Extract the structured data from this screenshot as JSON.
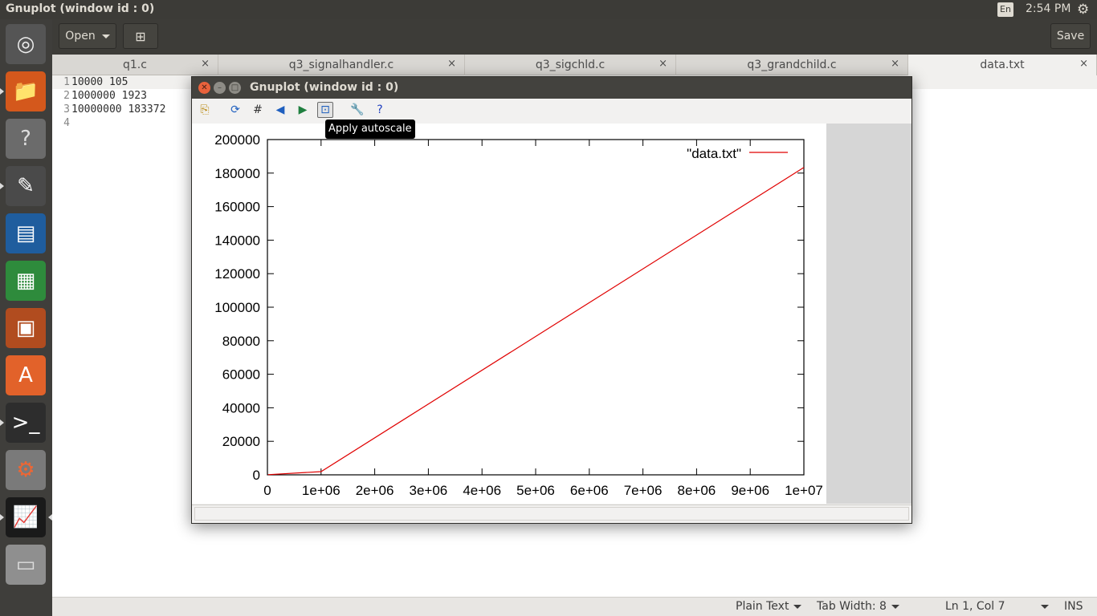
{
  "top_panel": {
    "window_title": "Gnuplot (window id : 0)",
    "keyboard_layout": "En",
    "clock": "2:54 PM"
  },
  "launcher": {
    "items": [
      {
        "name": "ubuntu-dash-icon",
        "glyph": "◎"
      },
      {
        "name": "files-icon",
        "glyph": "📁"
      },
      {
        "name": "help-icon",
        "glyph": "?"
      },
      {
        "name": "text-editor-icon",
        "glyph": "✎"
      },
      {
        "name": "writer-icon",
        "glyph": "▤"
      },
      {
        "name": "calc-icon",
        "glyph": "▦"
      },
      {
        "name": "impress-icon",
        "glyph": "▣"
      },
      {
        "name": "software-center-icon",
        "glyph": "A"
      },
      {
        "name": "terminal-icon",
        "glyph": ">_"
      },
      {
        "name": "system-settings-icon",
        "glyph": "⚙"
      },
      {
        "name": "gnuplot-icon",
        "glyph": "📈"
      },
      {
        "name": "workspaces-icon",
        "glyph": "▭"
      }
    ]
  },
  "gedit": {
    "open_label": "Open",
    "save_label": "Save",
    "tabs": [
      {
        "label": "q1.c",
        "close": "×"
      },
      {
        "label": "q3_signalhandler.c",
        "close": "×"
      },
      {
        "label": "q3_sigchld.c",
        "close": "×"
      },
      {
        "label": "q3_grandchild.c",
        "close": "×"
      },
      {
        "label": "data.txt",
        "close": "×"
      }
    ],
    "lines": [
      {
        "num": "1",
        "text": "10000 105"
      },
      {
        "num": "2",
        "text": "1000000 1923"
      },
      {
        "num": "3",
        "text": "10000000 183372"
      },
      {
        "num": "4",
        "text": ""
      }
    ],
    "status": {
      "language": "Plain Text",
      "tab_width": "Tab Width: 8",
      "position": "Ln 1, Col 7",
      "mode": "INS"
    }
  },
  "gnuplot": {
    "title": "Gnuplot (window id : 0)",
    "tooltip": "Apply autoscale",
    "toolbar": [
      {
        "name": "copy-to-clipboard-icon",
        "glyph": "⎘"
      },
      {
        "name": "replot-icon",
        "glyph": "⟳"
      },
      {
        "name": "toggle-grid-icon",
        "glyph": "#"
      },
      {
        "name": "zoom-previous-icon",
        "glyph": "◀"
      },
      {
        "name": "zoom-next-icon",
        "glyph": "▶"
      },
      {
        "name": "autoscale-icon",
        "glyph": "⊡"
      },
      {
        "name": "configure-icon",
        "glyph": "🔧"
      },
      {
        "name": "help-icon",
        "glyph": "?"
      }
    ]
  },
  "chart_data": {
    "type": "line",
    "title": "",
    "xlabel": "",
    "ylabel": "",
    "xlim": [
      0,
      10000000
    ],
    "ylim": [
      0,
      200000
    ],
    "x_ticks": [
      0,
      1000000,
      2000000,
      3000000,
      4000000,
      5000000,
      6000000,
      7000000,
      8000000,
      9000000,
      10000000
    ],
    "x_tick_labels": [
      "0",
      "1e+06",
      "2e+06",
      "3e+06",
      "4e+06",
      "5e+06",
      "6e+06",
      "7e+06",
      "8e+06",
      "9e+06",
      "1e+07"
    ],
    "y_ticks": [
      0,
      20000,
      40000,
      60000,
      80000,
      100000,
      120000,
      140000,
      160000,
      180000,
      200000
    ],
    "y_tick_labels": [
      "0",
      "20000",
      "40000",
      "60000",
      "80000",
      "100000",
      "120000",
      "140000",
      "160000",
      "180000",
      "200000"
    ],
    "legend_position": "top-right",
    "grid": false,
    "series": [
      {
        "name": "\"data.txt\"",
        "color": "#e00000",
        "x": [
          10000,
          1000000,
          10000000
        ],
        "y": [
          105,
          1923,
          183372
        ]
      }
    ]
  }
}
